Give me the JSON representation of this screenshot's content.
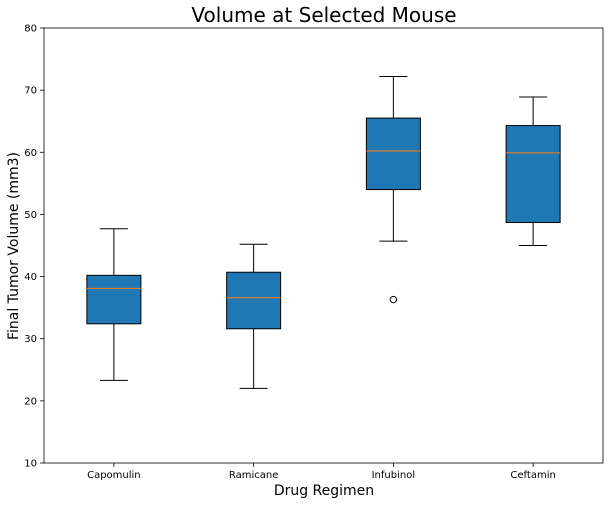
{
  "chart_data": {
    "type": "box",
    "title": "Volume at Selected Mouse",
    "xlabel": "Drug Regimen",
    "ylabel": "Final Tumor Volume (mm3)",
    "ylim": [
      10,
      80
    ],
    "yticks": [
      10,
      20,
      30,
      40,
      50,
      60,
      70,
      80
    ],
    "grid": false,
    "categories": [
      "Capomulin",
      "Ramicane",
      "Infubinol",
      "Ceftamin"
    ],
    "boxes": [
      {
        "category": "Capomulin",
        "whisker_low": 23.3,
        "q1": 32.4,
        "median": 38.1,
        "q3": 40.2,
        "whisker_high": 47.7,
        "outliers": []
      },
      {
        "category": "Ramicane",
        "whisker_low": 22.0,
        "q1": 31.6,
        "median": 36.6,
        "q3": 40.7,
        "whisker_high": 45.2,
        "outliers": []
      },
      {
        "category": "Infubinol",
        "whisker_low": 45.7,
        "q1": 54.0,
        "median": 60.2,
        "q3": 65.5,
        "whisker_high": 72.2,
        "outliers": [
          36.3
        ]
      },
      {
        "category": "Ceftamin",
        "whisker_low": 45.0,
        "q1": 48.7,
        "median": 59.9,
        "q3": 64.3,
        "whisker_high": 68.9,
        "outliers": []
      }
    ],
    "colors": {
      "box_fill": "#1f77b4",
      "median": "#ff7f0e",
      "line": "#000000"
    }
  }
}
